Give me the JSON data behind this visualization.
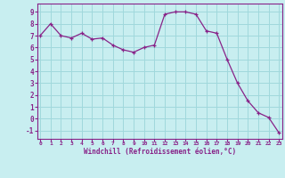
{
  "x": [
    0,
    1,
    2,
    3,
    4,
    5,
    6,
    7,
    8,
    9,
    10,
    11,
    12,
    13,
    14,
    15,
    16,
    17,
    18,
    19,
    20,
    21,
    22,
    23
  ],
  "y": [
    7.0,
    8.0,
    7.0,
    6.8,
    7.2,
    6.7,
    6.8,
    6.2,
    5.8,
    5.6,
    6.0,
    6.2,
    8.8,
    9.0,
    9.0,
    8.8,
    7.4,
    7.2,
    5.0,
    3.0,
    1.5,
    0.5,
    0.1,
    -1.2
  ],
  "line_color": "#882288",
  "marker": "+",
  "bg_color": "#c8eef0",
  "grid_color": "#a0d8dc",
  "xlabel": "Windchill (Refroidissement éolien,°C)",
  "ylabel_ticks": [
    -1,
    0,
    1,
    2,
    3,
    4,
    5,
    6,
    7,
    8,
    9
  ],
  "xticks": [
    0,
    1,
    2,
    3,
    4,
    5,
    6,
    7,
    8,
    9,
    10,
    11,
    12,
    13,
    14,
    15,
    16,
    17,
    18,
    19,
    20,
    21,
    22,
    23
  ],
  "ylim": [
    -1.7,
    9.7
  ],
  "xlim": [
    -0.3,
    23.3
  ],
  "axis_color": "#882288",
  "tick_color": "#882288",
  "label_color": "#882288",
  "spine_color": "#882288"
}
